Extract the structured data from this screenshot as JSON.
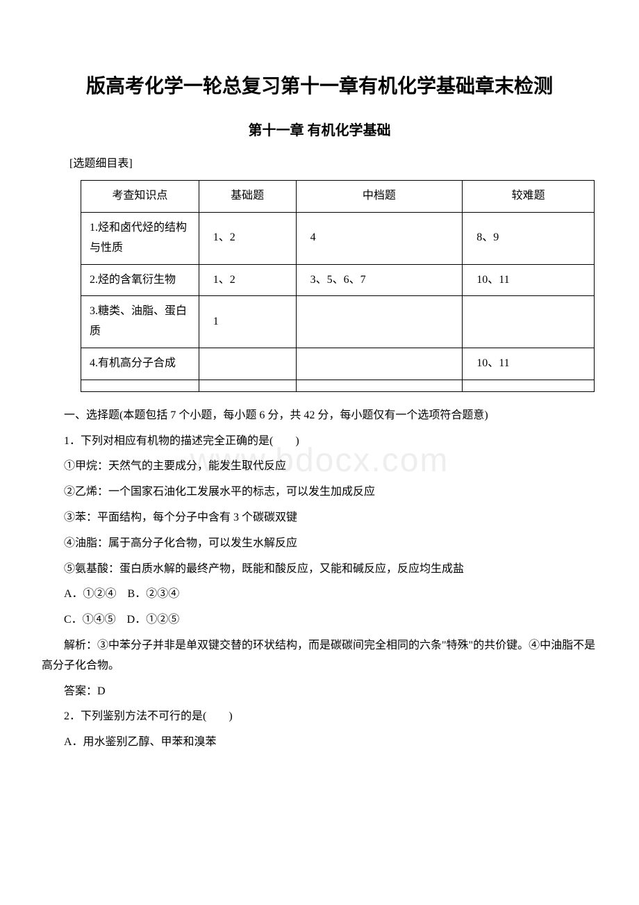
{
  "title": "版高考化学一轮总复习第十一章有机化学基础章末检测",
  "subtitle": "第十一章 有机化学基础",
  "table_label": "[选题细目表]",
  "watermark": "www.bdocx.com",
  "table": {
    "headers": [
      "考查知识点",
      "基础题",
      "中档题",
      "较难题"
    ],
    "rows": [
      [
        "1.烃和卤代烃的结构与性质",
        "1、2",
        "4",
        "8、9"
      ],
      [
        "2.烃的含氧衍生物",
        "1、2",
        "3、5、6、7",
        "10、11"
      ],
      [
        "3.糖类、油脂、蛋白质",
        "1",
        "",
        ""
      ],
      [
        "4.有机高分子合成",
        "",
        "",
        "10、11"
      ],
      [
        "",
        "",
        "",
        ""
      ]
    ]
  },
  "section_intro": "一、选择题(本题包括 7 个小题，每小题 6 分，共 42 分，每小题仅有一个选项符合题意)",
  "q1": {
    "stem": "1．下列对相应有机物的描述完全正确的是(　　)",
    "items": [
      "①甲烷：天然气的主要成分，能发生取代反应",
      "②乙烯：一个国家石油化工发展水平的标志，可以发生加成反应",
      "③苯：平面结构，每个分子中含有 3 个碳碳双键",
      "④油脂：属于高分子化合物，可以发生水解反应",
      "⑤氨基酸：蛋白质水解的最终产物，既能和酸反应，又能和碱反应，反应均生成盐"
    ],
    "options_line1": "A．①②④ B．②③④",
    "options_line2": "C．①④⑤ D．①②⑤",
    "explain": "解析：③中苯分子并非是单双键交替的环状结构，而是碳碳间完全相同的六条\"特殊\"的共价键。④中油脂不是高分子化合物。",
    "answer": "答案：D"
  },
  "q2": {
    "stem": "2．下列鉴别方法不可行的是(　　)",
    "optA": "A．用水鉴别乙醇、甲苯和溴苯"
  }
}
